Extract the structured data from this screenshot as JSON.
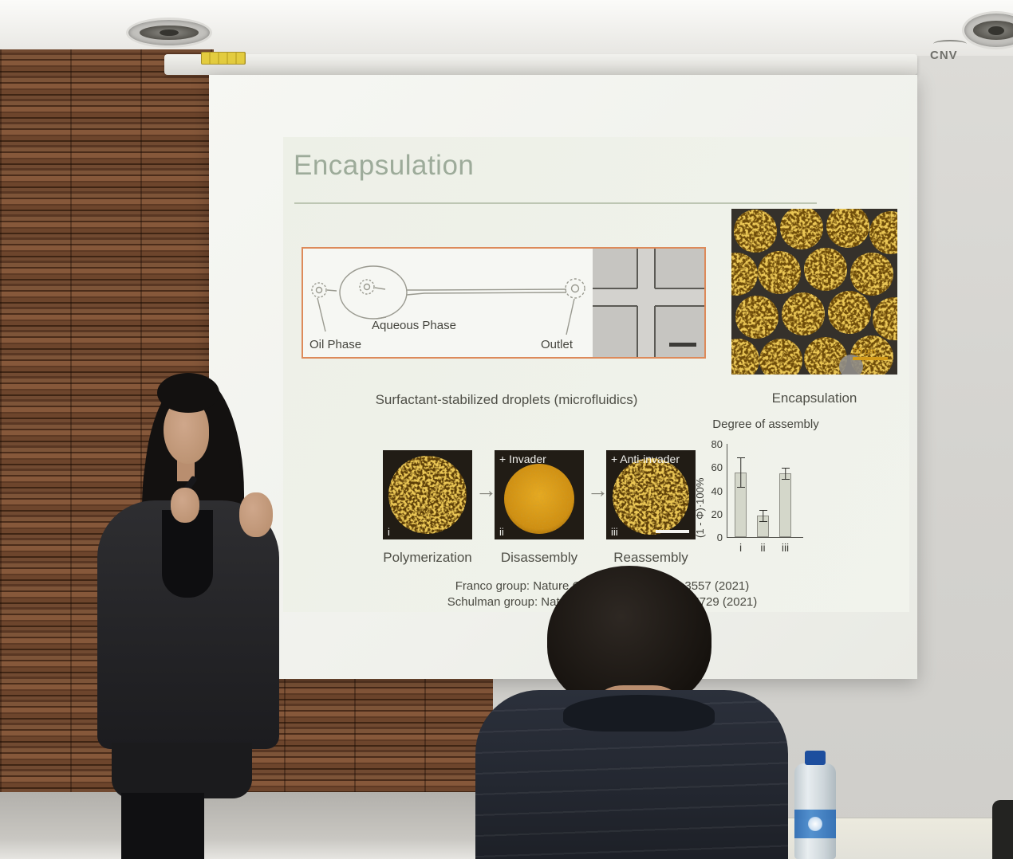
{
  "room": {
    "wall_logo": "CNV"
  },
  "icons": {
    "arrow_right": "→"
  },
  "colors": {
    "slide_title": "#9dab9a",
    "droplet_orange": "#c98f15",
    "schematic_border": "#dd8a5a"
  },
  "slide": {
    "title": "Encapsulation",
    "diagram_labels": {
      "oil_phase": "Oil Phase",
      "aqueous_phase": "Aqueous Phase",
      "outlet": "Outlet"
    },
    "caption_droplets": "Surfactant-stabilized droplets (microfluidics)",
    "caption_encapsulation": "Encapsulation",
    "scalebar": "50 μm",
    "sequence": [
      {
        "index": "i",
        "overlay": "",
        "label": "Polymerization"
      },
      {
        "index": "ii",
        "overlay": "+ Invader",
        "label": "Disassembly"
      },
      {
        "index": "iii",
        "overlay": "+ Anti-invader",
        "label": "Reassembly"
      }
    ],
    "references": [
      "Franco group: Nature Communications 12, 3557 (2021)",
      "Schulman group: Nature Communications 12, 5729 (2021)"
    ]
  },
  "chart_data": {
    "type": "bar",
    "title": "Degree of assembly",
    "ylabel": "(1 - Φ)·100%",
    "categories": [
      "i",
      "ii",
      "iii"
    ],
    "values": [
      55,
      18,
      54
    ],
    "errors": [
      13,
      5,
      5
    ],
    "ylim": [
      0,
      80
    ],
    "yticks": [
      0,
      20,
      40,
      60,
      80
    ],
    "legend": null,
    "grid": false
  }
}
